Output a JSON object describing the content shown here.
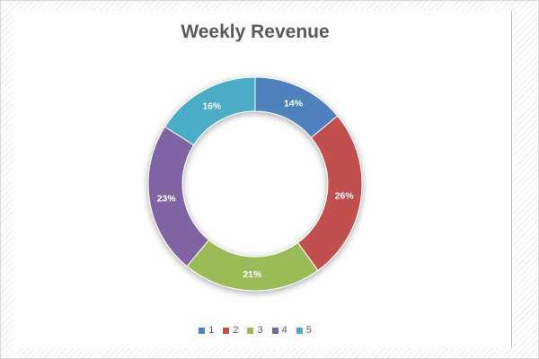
{
  "chart_data": {
    "type": "pie",
    "donut": true,
    "title": "Weekly Revenue",
    "categories": [
      "1",
      "2",
      "3",
      "4",
      "5"
    ],
    "values": [
      14,
      26,
      21,
      23,
      16
    ],
    "labels": [
      "14%",
      "26%",
      "21%",
      "23%",
      "16%"
    ],
    "colors": [
      "#4f81bd",
      "#c0504d",
      "#9bbb59",
      "#8064a2",
      "#4bacc6"
    ],
    "legend_position": "bottom"
  }
}
